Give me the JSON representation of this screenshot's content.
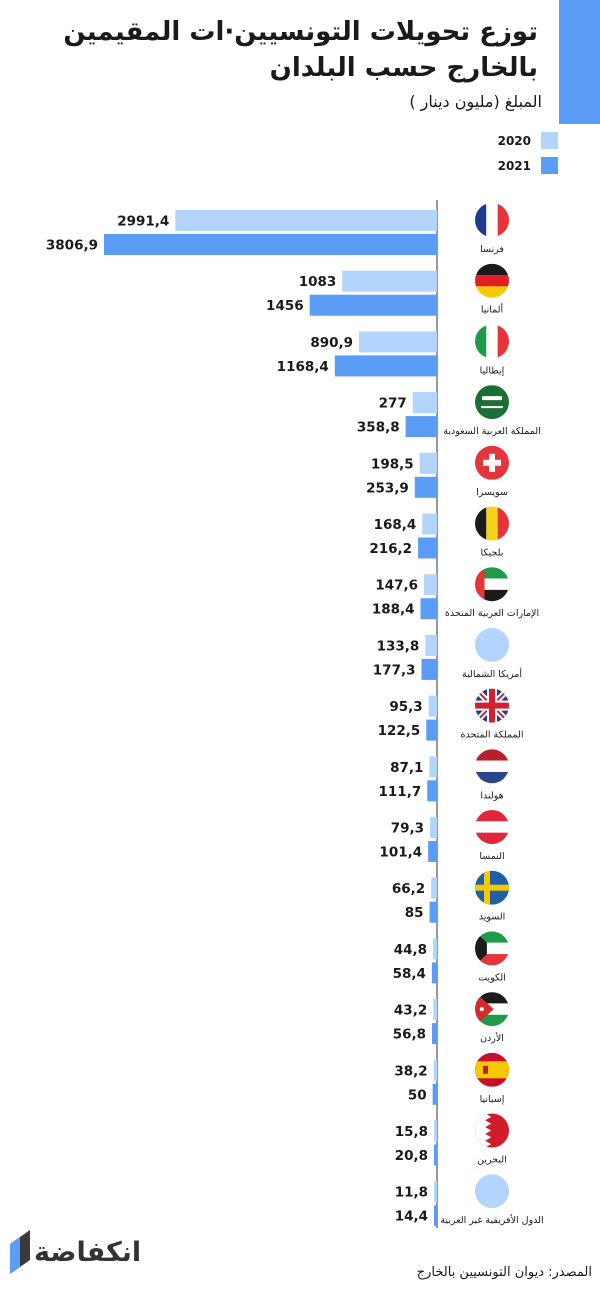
{
  "title": "توزع تحويلات التونسيين·ات المقيمين بالخارج حسب البلدان",
  "subtitle": "المبلغ (مليون دينار )",
  "accent_color": "#5b9cf6",
  "light_color": "#b3d4fc",
  "legend": [
    {
      "label": "2020",
      "color": "#b3d4fc"
    },
    {
      "label": "2021",
      "color": "#5b9cf6"
    }
  ],
  "chart_data": {
    "type": "bar",
    "orientation": "horizontal",
    "categories": [
      "فرنسا",
      "ألمانيا",
      "إيطاليا",
      "المملكة العربية السعودية",
      "سويسرا",
      "بلجيكا",
      "الإمارات العربية المتحدة",
      "أمريكا الشمالية",
      "المملكة المتحدة",
      "هولندا",
      "النمسا",
      "السويد",
      "الكويت",
      "الأردن",
      "إسبانيا",
      "البحرين",
      "الدول الأفريقية غير العربية"
    ],
    "flags": [
      "flag-france-icon",
      "flag-germany-icon",
      "flag-italy-icon",
      "flag-saudi-arabia-icon",
      "flag-switzerland-icon",
      "flag-belgium-icon",
      "flag-uae-icon",
      "placeholder-circle-icon",
      "flag-uk-icon",
      "flag-netherlands-icon",
      "flag-austria-icon",
      "flag-sweden-icon",
      "flag-kuwait-icon",
      "flag-jordan-icon",
      "flag-spain-icon",
      "flag-bahrain-icon",
      "placeholder-circle-icon"
    ],
    "series": [
      {
        "name": "2020",
        "values": [
          2991.4,
          1083,
          890.9,
          277,
          198.5,
          168.4,
          147.6,
          133.8,
          95.3,
          87.1,
          79.3,
          66.2,
          44.8,
          43.2,
          38.2,
          15.8,
          11.8
        ],
        "labels": [
          "2991,4",
          "1083",
          "890,9",
          "277",
          "198,5",
          "168,4",
          "147,6",
          "133,8",
          "95,3",
          "87,1",
          "79,3",
          "66,2",
          "44,8",
          "43,2",
          "38,2",
          "15,8",
          "11,8"
        ]
      },
      {
        "name": "2021",
        "values": [
          3806.9,
          1456,
          1168.4,
          358.8,
          253.9,
          216.2,
          188.4,
          177.3,
          122.5,
          111.7,
          101.4,
          85,
          58.4,
          56.8,
          50,
          20.8,
          14.4
        ],
        "labels": [
          "3806,9",
          "1456",
          "1168,4",
          "358,8",
          "253,9",
          "216,2",
          "188,4",
          "177,3",
          "122,5",
          "111,7",
          "101,4",
          "85",
          "58,4",
          "56,8",
          "50",
          "20,8",
          "14,4"
        ]
      }
    ],
    "xlim": [
      0,
      3806.9
    ]
  },
  "source": "المصدر: ديوان التونسيين بالخارج",
  "brand": "انكفاضة"
}
